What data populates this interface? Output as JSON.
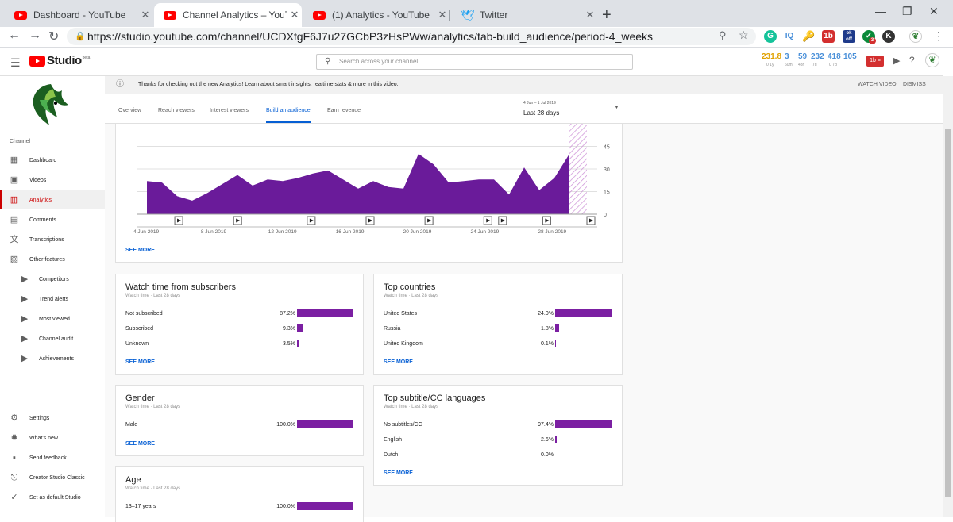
{
  "browser": {
    "tabs": [
      {
        "title": "Dashboard - YouTube",
        "icon": "youtube-icon",
        "active": false
      },
      {
        "title": "Channel Analytics – YouTube Stu",
        "icon": "youtube-icon",
        "active": true
      },
      {
        "title": "(1) Analytics - YouTube",
        "icon": "youtube-icon",
        "active": false
      },
      {
        "title": "Twitter",
        "icon": "twitter-icon",
        "active": false
      }
    ],
    "url": "https://studio.youtube.com/channel/UCDXfgF6J7u27GCbP3zHsPWw/analytics/tab-build_audience/period-4_weeks",
    "extensions": [
      "G",
      "IQ",
      "1b",
      "ok off",
      "3",
      "K"
    ]
  },
  "header": {
    "logo_text": "Studio",
    "logo_beta": "beta",
    "search_placeholder": "Search across your channel",
    "stats": [
      {
        "value": "231.8",
        "sub": "0 1y",
        "color": "#e0a100"
      },
      {
        "value": "3",
        "sub": "60m",
        "color": "#4a90d9"
      },
      {
        "value": "59",
        "sub": "48h",
        "color": "#4a90d9"
      },
      {
        "value": "232",
        "sub": "7d",
        "color": "#4a90d9"
      },
      {
        "value": "418",
        "sub": "0 7d",
        "color": "#4a90d9"
      },
      {
        "value": "105",
        "sub": "",
        "color": "#4a90d9"
      }
    ]
  },
  "sidebar": {
    "section_label": "Channel",
    "items": [
      {
        "label": "Dashboard",
        "icon": "dashboard-icon"
      },
      {
        "label": "Videos",
        "icon": "videos-icon"
      },
      {
        "label": "Analytics",
        "icon": "analytics-icon",
        "active": true
      },
      {
        "label": "Comments",
        "icon": "comments-icon"
      },
      {
        "label": "Transcriptions",
        "icon": "transcriptions-icon"
      },
      {
        "label": "Other features",
        "icon": "other-features-icon"
      }
    ],
    "sub_items": [
      {
        "label": "Competitors"
      },
      {
        "label": "Trend alerts"
      },
      {
        "label": "Most viewed"
      },
      {
        "label": "Channel audit"
      },
      {
        "label": "Achievements"
      }
    ],
    "bottom_items": [
      {
        "label": "Settings",
        "icon": "gear-icon"
      },
      {
        "label": "What's new",
        "icon": "whats-new-icon"
      },
      {
        "label": "Send feedback",
        "icon": "feedback-icon"
      },
      {
        "label": "Creator Studio Classic",
        "icon": "classic-studio-icon"
      },
      {
        "label": "Set as default Studio",
        "icon": "check-circle-icon"
      }
    ]
  },
  "banner": {
    "text": "Thanks for checking out the new Analytics! Learn about smart insights, realtime stats & more in this video.",
    "watch_video": "WATCH VIDEO",
    "dismiss": "DISMISS"
  },
  "analytics_tabs": [
    "Overview",
    "Reach viewers",
    "Interest viewers",
    "Build an audience",
    "Earn revenue"
  ],
  "active_tab": "Build an audience",
  "date_range": {
    "range": "4 Jun – 1 Jul 2019",
    "label": "Last 28 days"
  },
  "chart_data": {
    "type": "area",
    "x_labels": [
      "4 Jun 2019",
      "8 Jun 2019",
      "12 Jun 2019",
      "16 Jun 2019",
      "20 Jun 2019",
      "24 Jun 2019",
      "28 Jun 2019"
    ],
    "y_ticks": [
      "0",
      "15",
      "30",
      "45"
    ],
    "ylim": [
      0,
      60
    ],
    "values": [
      22,
      21,
      12,
      9,
      14,
      20,
      26,
      19,
      23,
      22,
      24,
      27,
      29,
      23,
      17,
      22,
      18,
      17,
      40,
      33,
      21,
      22,
      23,
      23,
      13,
      31,
      16,
      24,
      40
    ],
    "color": "#6a1b9a"
  },
  "chart_see_more": "SEE MORE",
  "cards": {
    "subscribers": {
      "title": "Watch time from subscribers",
      "subtitle": "Watch time · Last 28 days",
      "rows": [
        {
          "label": "Not subscribed",
          "percent": "87.2%",
          "value": 87.2
        },
        {
          "label": "Subscribed",
          "percent": "9.3%",
          "value": 9.3
        },
        {
          "label": "Unknown",
          "percent": "3.5%",
          "value": 3.5
        }
      ],
      "more": "SEE MORE"
    },
    "countries": {
      "title": "Top countries",
      "subtitle": "Watch time · Last 28 days",
      "rows": [
        {
          "label": "United States",
          "percent": "24.0%",
          "value": 24.0
        },
        {
          "label": "Russia",
          "percent": "1.8%",
          "value": 1.8
        },
        {
          "label": "United Kingdom",
          "percent": "0.1%",
          "value": 0.1
        }
      ],
      "more": "SEE MORE"
    },
    "gender": {
      "title": "Gender",
      "subtitle": "Watch time · Last 28 days",
      "rows": [
        {
          "label": "Male",
          "percent": "100.0%",
          "value": 100.0
        }
      ],
      "more": "SEE MORE"
    },
    "subtitles": {
      "title": "Top subtitle/CC languages",
      "subtitle": "Watch time · Last 28 days",
      "rows": [
        {
          "label": "No subtitles/CC",
          "percent": "97.4%",
          "value": 97.4
        },
        {
          "label": "English",
          "percent": "2.6%",
          "value": 2.6
        },
        {
          "label": "Dutch",
          "percent": "0.0%",
          "value": 0.0
        }
      ],
      "more": "SEE MORE"
    },
    "age": {
      "title": "Age",
      "subtitle": "Watch time · Last 28 days",
      "rows": [
        {
          "label": "13–17 years",
          "percent": "100.0%",
          "value": 100.0
        }
      ]
    }
  }
}
